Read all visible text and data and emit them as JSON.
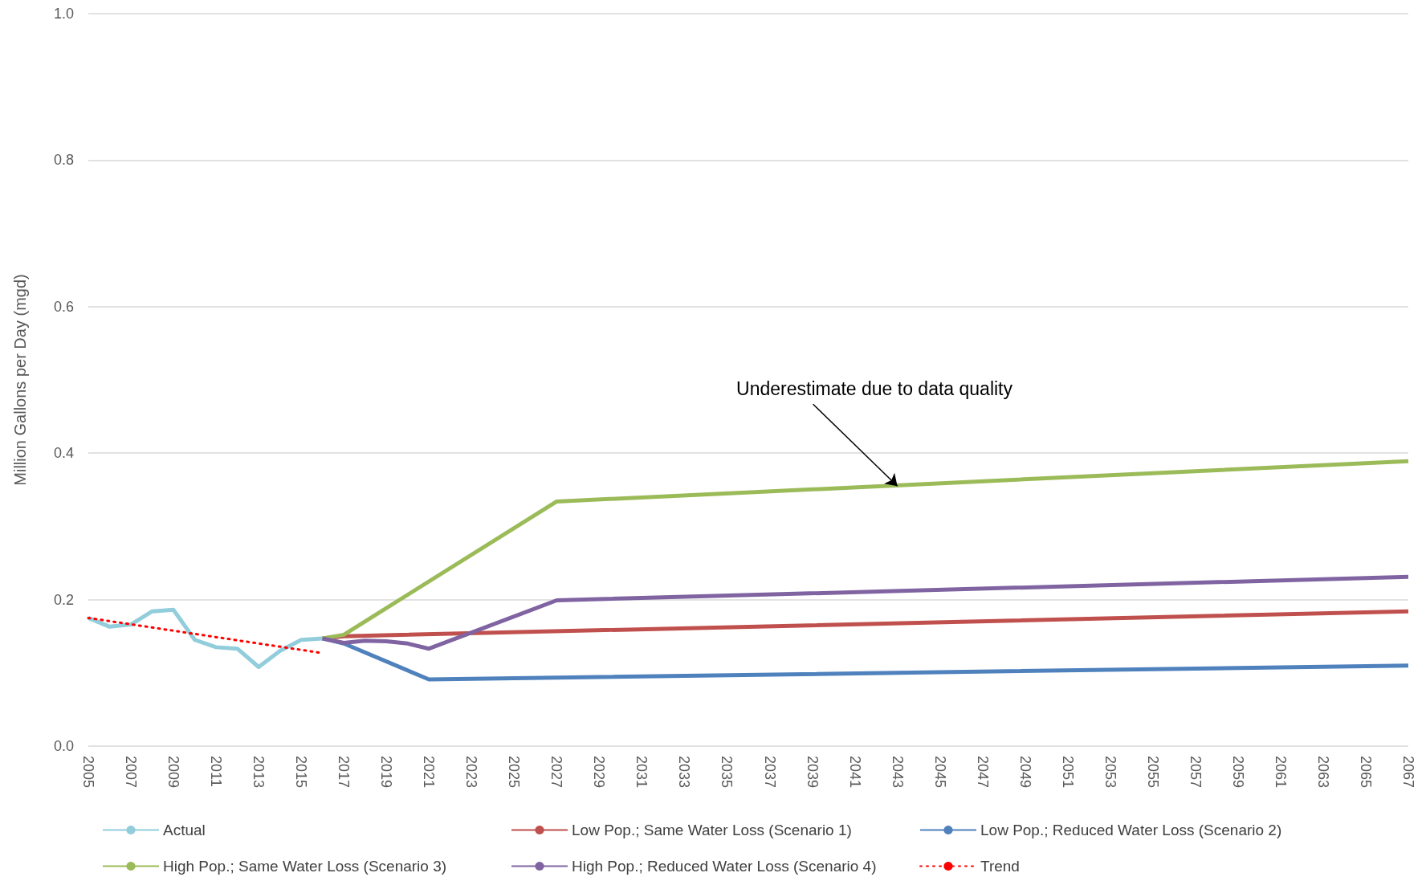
{
  "chart_data": {
    "type": "line",
    "ylabel": "Million Gallons per Day (mgd)",
    "xlim": [
      2005,
      2067
    ],
    "xticks": [
      2005,
      2007,
      2009,
      2011,
      2013,
      2015,
      2017,
      2019,
      2021,
      2023,
      2025,
      2027,
      2029,
      2031,
      2033,
      2035,
      2037,
      2039,
      2041,
      2043,
      2045,
      2047,
      2049,
      2051,
      2053,
      2055,
      2057,
      2059,
      2061,
      2063,
      2065,
      2067
    ],
    "ylim": [
      0,
      1
    ],
    "yticks": [
      {
        "value": 0,
        "label": "0.0"
      },
      {
        "value": 0.2,
        "label": "0.2"
      },
      {
        "value": 0.4,
        "label": "0.4"
      },
      {
        "value": 0.6,
        "label": "0.6"
      },
      {
        "value": 0.8,
        "label": "0.8"
      },
      {
        "value": 1,
        "label": "1.0"
      }
    ],
    "grid": "y",
    "legend": "bottom",
    "marker": "none",
    "line_style": "solid",
    "series": [
      {
        "name": "Actual",
        "color": "#92cddc",
        "x": [
          2005,
          2006,
          2007,
          2008,
          2009,
          2010,
          2011,
          2012,
          2013,
          2014,
          2015,
          2016
        ],
        "values": [
          0.175,
          0.163,
          0.166,
          0.184,
          0.186,
          0.145,
          0.135,
          0.133,
          0.108,
          0.13,
          0.145,
          0.147
        ]
      },
      {
        "name": "Low Pop.; Same Water Loss (Scenario 1)",
        "color": "#c0504d",
        "x": [
          2016,
          2017,
          2067
        ],
        "values": [
          0.147,
          0.15,
          0.184
        ]
      },
      {
        "name": "Low Pop.; Reduced Water Loss (Scenario 2)",
        "color": "#4f81bd",
        "x": [
          2016,
          2017,
          2021,
          2067
        ],
        "values": [
          0.147,
          0.14,
          0.091,
          0.11
        ]
      },
      {
        "name": "High Pop.; Same Water Loss (Scenario 3)",
        "color": "#9bbb59",
        "x": [
          2016,
          2017,
          2027,
          2067
        ],
        "values": [
          0.147,
          0.152,
          0.334,
          0.389
        ]
      },
      {
        "name": "High Pop.; Reduced Water Loss (Scenario 4)",
        "color": "#8064a2",
        "x": [
          2016,
          2017,
          2018,
          2019,
          2020,
          2021,
          2027,
          2067
        ],
        "values": [
          0.147,
          0.141,
          0.144,
          0.143,
          0.14,
          0.133,
          0.199,
          0.231
        ]
      },
      {
        "name": "Trend",
        "color": "#ff0000",
        "line_style": "dotted",
        "x": [
          2005,
          2016
        ],
        "values": [
          0.175,
          0.127
        ]
      }
    ],
    "annotations": [
      {
        "text": "Underestimate due to data quality",
        "x": 2043,
        "y": 0.355
      }
    ]
  }
}
